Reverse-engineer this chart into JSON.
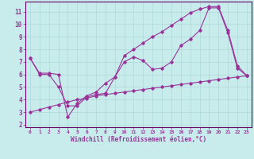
{
  "xlabel": "Windchill (Refroidissement éolien,°C)",
  "background_color": "#c8ecec",
  "grid_color": "#b0d8d8",
  "line_color": "#993399",
  "spine_color": "#660066",
  "xlim": [
    -0.5,
    23.5
  ],
  "ylim": [
    1.8,
    11.8
  ],
  "yticks": [
    2,
    3,
    4,
    5,
    6,
    7,
    8,
    9,
    10,
    11
  ],
  "xticks": [
    0,
    1,
    2,
    3,
    4,
    5,
    6,
    7,
    8,
    9,
    10,
    11,
    12,
    13,
    14,
    15,
    16,
    17,
    18,
    19,
    20,
    21,
    22,
    23
  ],
  "series1_x": [
    0,
    1,
    2,
    3,
    4,
    5,
    6,
    7,
    8,
    9,
    10,
    11,
    12,
    13,
    14,
    15,
    16,
    17,
    18,
    19,
    20,
    21,
    22,
    23
  ],
  "series1_y": [
    7.3,
    6.0,
    6.0,
    5.0,
    3.5,
    3.5,
    4.2,
    4.4,
    4.5,
    5.8,
    7.0,
    7.4,
    7.1,
    6.4,
    6.5,
    7.0,
    8.3,
    8.8,
    9.5,
    11.3,
    11.3,
    9.3,
    6.5,
    5.9
  ],
  "series2_x": [
    0,
    1,
    2,
    3,
    4,
    5,
    6,
    7,
    8,
    9,
    10,
    11,
    12,
    13,
    14,
    15,
    16,
    17,
    18,
    19,
    20,
    21,
    22,
    23
  ],
  "series2_y": [
    7.3,
    6.1,
    6.1,
    6.0,
    2.6,
    3.7,
    4.3,
    4.6,
    5.3,
    5.8,
    7.5,
    8.0,
    8.5,
    9.0,
    9.4,
    9.9,
    10.4,
    10.9,
    11.2,
    11.4,
    11.4,
    9.5,
    6.7,
    5.9
  ],
  "series3_x": [
    0,
    1,
    2,
    3,
    4,
    5,
    6,
    7,
    8,
    9,
    10,
    11,
    12,
    13,
    14,
    15,
    16,
    17,
    18,
    19,
    20,
    21,
    22,
    23
  ],
  "series3_y": [
    3.0,
    3.2,
    3.4,
    3.6,
    3.8,
    4.0,
    4.1,
    4.3,
    4.4,
    4.5,
    4.6,
    4.7,
    4.8,
    4.9,
    5.0,
    5.1,
    5.2,
    5.3,
    5.4,
    5.5,
    5.6,
    5.7,
    5.8,
    5.9
  ]
}
